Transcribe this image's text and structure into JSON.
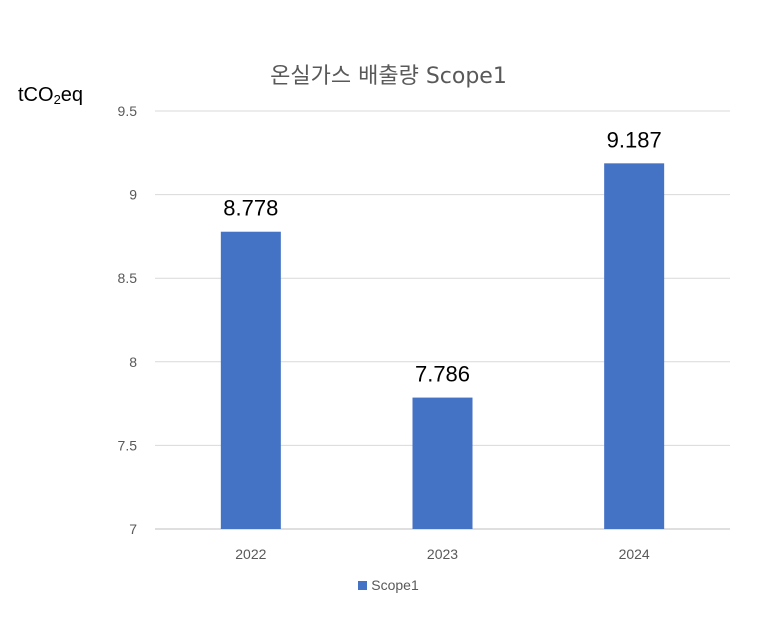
{
  "chart_data": {
    "type": "bar",
    "title": "온실가스 배출량 Scope1",
    "unit_label": {
      "prefix": "tCO",
      "subscript": "2",
      "suffix": "eq"
    },
    "categories": [
      "2022",
      "2023",
      "2024"
    ],
    "series": [
      {
        "name": "Scope1",
        "values": [
          8.778,
          7.786,
          9.187
        ],
        "color": "#4472c4"
      }
    ],
    "data_labels": [
      "8.778",
      "7.786",
      "9.187"
    ],
    "ylim": [
      7,
      9.5
    ],
    "yticks": [
      7,
      7.5,
      8,
      8.5,
      9,
      9.5
    ],
    "ytick_labels": [
      "7",
      "7.5",
      "8",
      "8.5",
      "9",
      "9.5"
    ],
    "grid": true,
    "legend": "bottom"
  }
}
